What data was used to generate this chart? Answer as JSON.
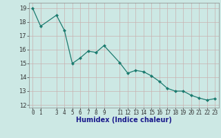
{
  "xlabel": "Humidex (Indice chaleur)",
  "x": [
    0,
    1,
    3,
    4,
    5,
    6,
    7,
    8,
    9,
    11,
    12,
    13,
    14,
    15,
    16,
    17,
    18,
    19,
    20,
    21,
    22,
    23
  ],
  "y": [
    19,
    17.7,
    18.5,
    17.4,
    15.0,
    15.4,
    15.9,
    15.8,
    16.3,
    15.05,
    14.3,
    14.5,
    14.4,
    14.1,
    13.7,
    13.2,
    13.0,
    13.0,
    12.7,
    12.5,
    12.35,
    12.45
  ],
  "line_color": "#1a7a6e",
  "bg_color": "#cce8e4",
  "grid_color": "#c8b0b0",
  "ylim": [
    11.8,
    19.4
  ],
  "xlim": [
    -0.5,
    23.5
  ],
  "yticks": [
    12,
    13,
    14,
    15,
    16,
    17,
    18,
    19
  ],
  "xticks": [
    0,
    1,
    3,
    4,
    5,
    6,
    7,
    8,
    9,
    11,
    12,
    13,
    14,
    15,
    16,
    17,
    18,
    19,
    20,
    21,
    22,
    23
  ],
  "xlabel_color": "#1a1a8c",
  "xlabel_fontsize": 7,
  "tick_fontsize": 5.5,
  "ytick_fontsize": 6
}
